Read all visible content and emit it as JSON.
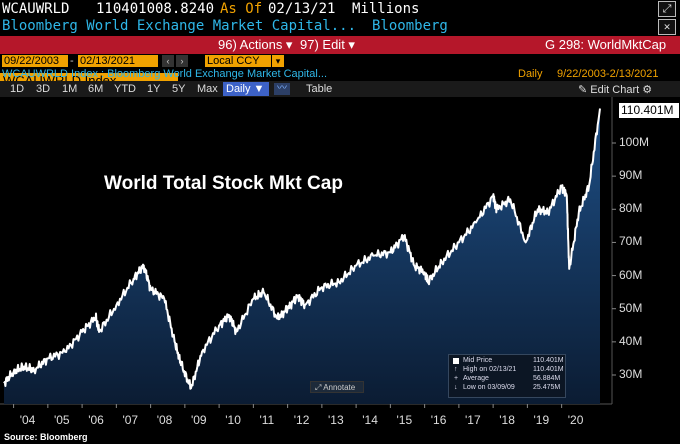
{
  "header": {
    "ticker": "WCAUWRLD",
    "value": "110401008.8240",
    "as_of_label": "As Of",
    "as_of_date": "02/13/21",
    "units": "Millions",
    "description": "Bloomberg World Exchange Market Capital...",
    "source_name": "Bloomberg"
  },
  "toolbar": {
    "security": "WCAUWRLD Index",
    "actions_label": "96) Actions ▾",
    "edit_label": "97) Edit ▾",
    "function_label": "G 298: WorldMktCap"
  },
  "dates": {
    "start": "09/22/2003",
    "end": "02/13/2021",
    "currency": "Local CCY"
  },
  "title_row": {
    "chart_title": "WCAUWRLD Index : Bloomberg World Exchange Market Capital...",
    "frequency": "Daily",
    "range": "9/22/2003-2/13/2021"
  },
  "tabs": [
    "1D",
    "3D",
    "1M",
    "6M",
    "YTD",
    "1Y",
    "5Y",
    "Max"
  ],
  "tab_active": "Daily ▼",
  "tab_table": "Table",
  "edit_chart": "✎ Edit Chart ⚙",
  "chart_data": {
    "type": "area",
    "title": "World Total Stock Mkt Cap",
    "xlabel": "",
    "ylabel": "",
    "x_ticks": [
      "'04",
      "'05",
      "'06",
      "'07",
      "'08",
      "'09",
      "'10",
      "'11",
      "'12",
      "'13",
      "'14",
      "'15",
      "'16",
      "'17",
      "'18",
      "'19",
      "'20"
    ],
    "y_ticks": [
      "30M",
      "40M",
      "50M",
      "60M",
      "70M",
      "80M",
      "90M",
      "100M"
    ],
    "ylim": [
      22,
      110.4
    ],
    "series": [
      {
        "name": "Mid Price",
        "x": [
          2003.72,
          2004.0,
          2004.3,
          2004.6,
          2005.0,
          2005.5,
          2006.0,
          2006.4,
          2006.5,
          2007.0,
          2007.5,
          2007.8,
          2008.0,
          2008.4,
          2008.7,
          2008.9,
          2009.18,
          2009.5,
          2010.0,
          2010.3,
          2010.5,
          2011.0,
          2011.3,
          2011.7,
          2012.0,
          2012.3,
          2012.5,
          2013.0,
          2013.5,
          2014.0,
          2014.5,
          2015.0,
          2015.4,
          2015.7,
          2016.0,
          2016.1,
          2016.5,
          2017.0,
          2017.5,
          2018.0,
          2018.1,
          2018.5,
          2018.95,
          2019.3,
          2019.6,
          2020.0,
          2020.15,
          2020.22,
          2020.5,
          2020.8,
          2021.12
        ],
        "values": [
          27.5,
          31.0,
          32.5,
          31.5,
          35.0,
          37.0,
          43.0,
          47.5,
          43.0,
          51.0,
          59.0,
          63.0,
          56.0,
          53.0,
          40.0,
          33.0,
          26.0,
          37.0,
          45.0,
          48.0,
          43.0,
          53.0,
          55.0,
          47.0,
          50.0,
          54.0,
          51.0,
          56.5,
          58.0,
          63.0,
          66.0,
          67.0,
          72.0,
          63.0,
          61.0,
          58.0,
          64.0,
          70.0,
          76.0,
          84.0,
          80.0,
          83.0,
          70.0,
          80.0,
          79.0,
          87.0,
          84.0,
          62.0,
          79.0,
          87.0,
          110.4
        ]
      }
    ],
    "legend": {
      "title": "Mid Price",
      "title_value": "110.401M",
      "high_label": "High on 02/13/21",
      "high_value": "110.401M",
      "avg_label": "Average",
      "avg_value": "56.884M",
      "low_label": "Low on 03/09/09",
      "low_value": "25.475M"
    },
    "last_value_label": "110.401M",
    "annotate_label": "Annotate",
    "colors": {
      "line": "#ffffff",
      "fill_top": "#1e4f86",
      "fill_bottom": "#0b1c33"
    }
  },
  "footer": {
    "source": "Source: Bloomberg"
  }
}
